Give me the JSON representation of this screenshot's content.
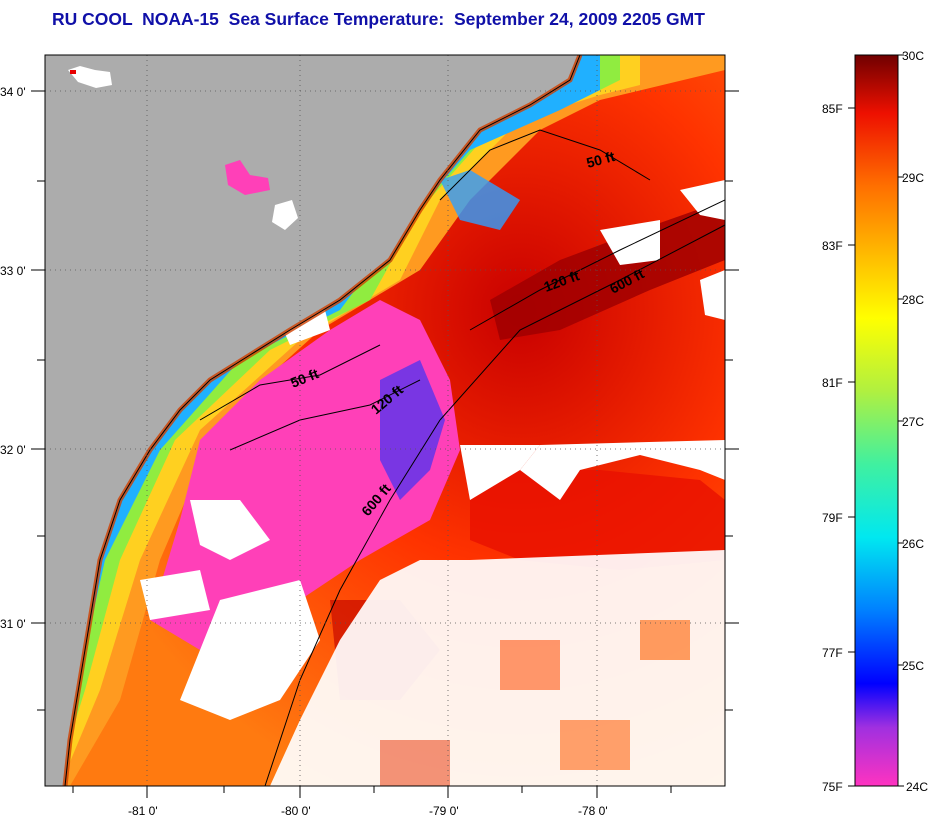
{
  "title": "RU COOL  NOAA-15  Sea Surface Temperature:  September 24, 2009 2205 GMT",
  "lat_ticks": [
    {
      "label": "34 0'",
      "value": 34.0
    },
    {
      "label": "33 0'",
      "value": 33.0
    },
    {
      "label": "32 0'",
      "value": 32.0
    },
    {
      "label": "31 0'",
      "value": 31.0
    }
  ],
  "lon_ticks": [
    {
      "label": "-81 0'",
      "value": -81.0
    },
    {
      "label": "-80 0'",
      "value": -80.0
    },
    {
      "label": "-79 0'",
      "value": -79.0
    },
    {
      "label": "-78 0'",
      "value": -78.0
    }
  ],
  "isobaths": [
    {
      "label": "50 ft"
    },
    {
      "label": "120 ft"
    },
    {
      "label": "600 ft"
    },
    {
      "label": "50 ft"
    },
    {
      "label": "120 ft"
    },
    {
      "label": "600 ft"
    }
  ],
  "colorbar": {
    "fahrenheit": [
      "85F",
      "83F",
      "81F",
      "79F",
      "77F",
      "75F"
    ],
    "celsius": [
      "30C",
      "29C",
      "28C",
      "27C",
      "26C",
      "25C",
      "24C"
    ],
    "min_c": 24,
    "max_c": 30
  },
  "colors": {
    "land": "#acacac",
    "cloud": "#ffffff",
    "title": "#1010a8"
  }
}
